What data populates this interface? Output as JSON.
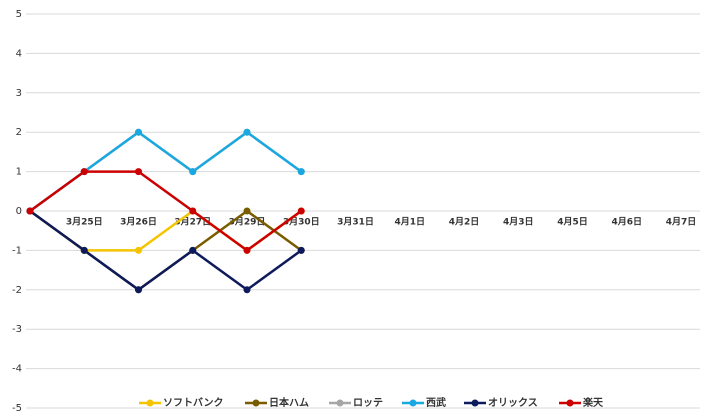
{
  "chart_data": {
    "type": "line",
    "categories": [
      null,
      "3月25日",
      "3月26日",
      "3月27日",
      "3月29日",
      "3月30日",
      "3月31日",
      "4月1日",
      "4月2日",
      "4月3日",
      "4月5日",
      "4月6日",
      "4月7日"
    ],
    "series": [
      {
        "name": "ソフトバンク",
        "color": "#f5c400",
        "values": [
          0,
          -1,
          -1,
          0,
          -1,
          0,
          null,
          null,
          null,
          null,
          null,
          null,
          null
        ]
      },
      {
        "name": "日本ハム",
        "color": "#7a5c00",
        "values": [
          0,
          -1,
          -2,
          -1,
          0,
          -1,
          null,
          null,
          null,
          null,
          null,
          null,
          null
        ]
      },
      {
        "name": "ロッテ",
        "color": "#a6a6a6",
        "values": [
          0,
          1,
          2,
          1,
          2,
          1,
          null,
          null,
          null,
          null,
          null,
          null,
          null
        ]
      },
      {
        "name": "西武",
        "color": "#1aa8e0",
        "values": [
          0,
          1,
          2,
          1,
          2,
          1,
          null,
          null,
          null,
          null,
          null,
          null,
          null
        ]
      },
      {
        "name": "オリックス",
        "color": "#0d1a5c",
        "values": [
          0,
          -1,
          -2,
          -1,
          -2,
          -1,
          null,
          null,
          null,
          null,
          null,
          null,
          null
        ]
      },
      {
        "name": "楽天",
        "color": "#cc0000",
        "values": [
          0,
          1,
          1,
          0,
          -1,
          0,
          null,
          null,
          null,
          null,
          null,
          null,
          null
        ]
      }
    ],
    "ylim": [
      -5,
      5
    ],
    "yticks": [
      -5,
      -4,
      -3,
      -2,
      -1,
      0,
      1,
      2,
      3,
      4,
      5
    ],
    "grid": true,
    "legend": "bottom"
  }
}
